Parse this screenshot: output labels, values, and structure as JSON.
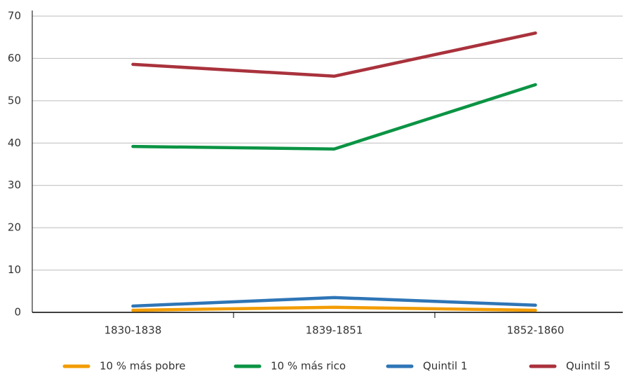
{
  "chart_data": {
    "type": "line",
    "categories": [
      "1830-1838",
      "1839-1851",
      "1852-1860"
    ],
    "series": [
      {
        "name": "10 % más pobre",
        "color": "#f29c00",
        "values": [
          0.5,
          1.2,
          0.5
        ]
      },
      {
        "name": "10 % más rico",
        "color": "#0b9444",
        "values": [
          39.2,
          38.6,
          53.8
        ]
      },
      {
        "name": "Quintil 1",
        "color": "#2e75b6",
        "values": [
          1.5,
          3.5,
          1.7
        ]
      },
      {
        "name": "Quintil 5",
        "color": "#a9323c",
        "values": [
          58.6,
          55.8,
          66.0
        ]
      }
    ],
    "ylim": [
      0,
      70
    ],
    "yticks": [
      0,
      10,
      20,
      30,
      40,
      50,
      60,
      70
    ],
    "grid": true,
    "legend": "bottom"
  }
}
